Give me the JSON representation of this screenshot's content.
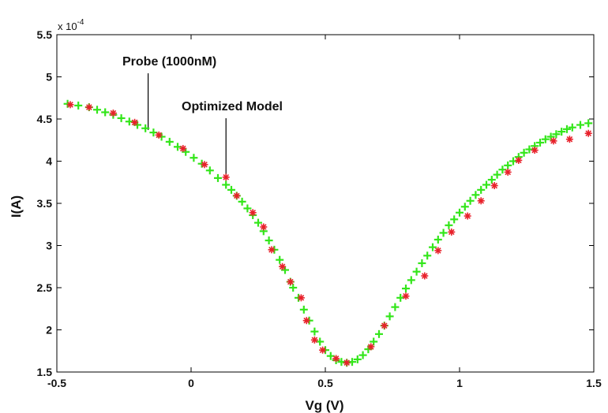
{
  "chart_data": {
    "type": "scatter",
    "title": "",
    "xlabel": "Vg (V)",
    "ylabel": "I(A)",
    "y_exponent_prefix": "x 10",
    "y_exponent_power": "-4",
    "xlim": [
      -0.5,
      1.5
    ],
    "ylim": [
      1.5,
      5.5
    ],
    "x_ticks": [
      -0.5,
      0,
      0.5,
      1,
      1.5
    ],
    "x_tick_labels": [
      "-0.5",
      "0",
      "0.5",
      "1",
      "1.5"
    ],
    "y_ticks": [
      1.5,
      2,
      2.5,
      3,
      3.5,
      4,
      4.5,
      5,
      5.5
    ],
    "y_tick_labels": [
      "1.5",
      "2",
      "2.5",
      "3",
      "3.5",
      "4",
      "4.5",
      "5",
      "5.5"
    ],
    "grid": false,
    "series": [
      {
        "marker": "asterisk",
        "color": "#e8212b",
        "x": [
          -0.45,
          -0.38,
          -0.29,
          -0.21,
          -0.12,
          -0.03,
          0.05,
          0.13,
          0.17,
          0.23,
          0.27,
          0.3,
          0.34,
          0.37,
          0.41,
          0.43,
          0.46,
          0.49,
          0.54,
          0.58,
          0.67,
          0.72,
          0.8,
          0.87,
          0.92,
          0.97,
          1.03,
          1.08,
          1.13,
          1.18,
          1.22,
          1.28,
          1.35,
          1.41,
          1.48
        ],
        "y": [
          4.67,
          4.64,
          4.57,
          4.46,
          4.31,
          4.15,
          3.96,
          3.81,
          3.59,
          3.39,
          3.22,
          2.95,
          2.75,
          2.57,
          2.38,
          2.11,
          1.88,
          1.76,
          1.66,
          1.61,
          1.8,
          2.05,
          2.4,
          2.64,
          2.94,
          3.16,
          3.35,
          3.53,
          3.71,
          3.87,
          4.01,
          4.13,
          4.24,
          4.26,
          4.33
        ]
      },
      {
        "marker": "plus",
        "color": "#33e61a",
        "x": [
          -0.46,
          -0.42,
          -0.38,
          -0.35,
          -0.32,
          -0.29,
          -0.26,
          -0.23,
          -0.2,
          -0.17,
          -0.14,
          -0.11,
          -0.08,
          -0.05,
          -0.02,
          0.01,
          0.04,
          0.07,
          0.1,
          0.13,
          0.15,
          0.17,
          0.19,
          0.21,
          0.23,
          0.25,
          0.27,
          0.29,
          0.31,
          0.33,
          0.35,
          0.37,
          0.38,
          0.4,
          0.42,
          0.44,
          0.46,
          0.48,
          0.5,
          0.52,
          0.54,
          0.56,
          0.58,
          0.6,
          0.62,
          0.64,
          0.66,
          0.68,
          0.7,
          0.72,
          0.74,
          0.76,
          0.78,
          0.8,
          0.82,
          0.84,
          0.86,
          0.88,
          0.9,
          0.92,
          0.94,
          0.96,
          0.98,
          1.0,
          1.02,
          1.04,
          1.06,
          1.08,
          1.1,
          1.12,
          1.14,
          1.16,
          1.18,
          1.2,
          1.22,
          1.24,
          1.26,
          1.28,
          1.3,
          1.32,
          1.34,
          1.36,
          1.38,
          1.4,
          1.42,
          1.45,
          1.48
        ],
        "y": [
          4.68,
          4.66,
          4.64,
          4.61,
          4.58,
          4.55,
          4.51,
          4.47,
          4.43,
          4.39,
          4.34,
          4.29,
          4.23,
          4.17,
          4.11,
          4.04,
          3.97,
          3.89,
          3.8,
          3.72,
          3.66,
          3.59,
          3.52,
          3.44,
          3.36,
          3.27,
          3.17,
          3.06,
          2.95,
          2.83,
          2.71,
          2.57,
          2.5,
          2.38,
          2.24,
          2.11,
          1.98,
          1.86,
          1.76,
          1.69,
          1.64,
          1.62,
          1.61,
          1.62,
          1.65,
          1.7,
          1.77,
          1.86,
          1.95,
          2.05,
          2.16,
          2.27,
          2.38,
          2.49,
          2.59,
          2.69,
          2.79,
          2.88,
          2.98,
          3.07,
          3.15,
          3.24,
          3.31,
          3.39,
          3.46,
          3.53,
          3.6,
          3.66,
          3.72,
          3.78,
          3.84,
          3.9,
          3.95,
          4.0,
          4.05,
          4.1,
          4.14,
          4.18,
          4.22,
          4.26,
          4.29,
          4.32,
          4.35,
          4.38,
          4.4,
          4.43,
          4.45
        ]
      }
    ],
    "annotations": [
      {
        "text": "Probe (1000nM)",
        "x": -0.16,
        "y": 4.37
      },
      {
        "text": "Optimized Model",
        "x": 0.13,
        "y": 3.8
      }
    ]
  }
}
